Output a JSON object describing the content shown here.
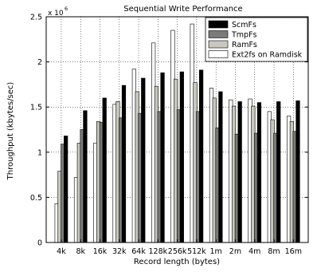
{
  "chart_data": {
    "type": "bar",
    "title": "Sequential Write Performance",
    "xlabel": "Record length (bytes)",
    "ylabel": "Throughput (kbytes/sec)",
    "y_multiplier_base": "x 10",
    "y_multiplier_exp": "6",
    "ylim": [
      0,
      2500000
    ],
    "yticks": [
      0,
      500000,
      1000000,
      1500000,
      2000000,
      2500000
    ],
    "ytick_labels": [
      "0",
      "0.5",
      "1",
      "1.5",
      "2",
      "2.5"
    ],
    "grid": true,
    "legend_position": "top-right",
    "categories": [
      "4k",
      "8k",
      "16k",
      "32k",
      "64k",
      "128k",
      "256k",
      "512k",
      "1m",
      "2m",
      "4m",
      "8m",
      "16m"
    ],
    "series": [
      {
        "name": "Ext2fs on Ramdisk",
        "color": "#ffffff",
        "values": [
          430000,
          720000,
          1100000,
          1530000,
          1920000,
          2210000,
          2350000,
          2420000,
          1710000,
          1580000,
          1590000,
          1450000,
          1400000
        ]
      },
      {
        "name": "RamFs",
        "color": "#c8c8be",
        "values": [
          790000,
          1100000,
          1340000,
          1560000,
          1670000,
          1730000,
          1810000,
          1770000,
          1600000,
          1510000,
          1510000,
          1360000,
          1340000
        ]
      },
      {
        "name": "TmpFs",
        "color": "#7a7a7a",
        "values": [
          1090000,
          1250000,
          1330000,
          1380000,
          1430000,
          1450000,
          1470000,
          1450000,
          1270000,
          1200000,
          1210000,
          1210000,
          1230000
        ]
      },
      {
        "name": "ScmFs",
        "color": "#000000",
        "values": [
          1180000,
          1460000,
          1600000,
          1740000,
          1820000,
          1880000,
          1890000,
          1910000,
          1670000,
          1560000,
          1550000,
          1560000,
          1570000
        ]
      }
    ],
    "legend_order": [
      "ScmFs",
      "TmpFs",
      "RamFs",
      "Ext2fs on Ramdisk"
    ]
  }
}
